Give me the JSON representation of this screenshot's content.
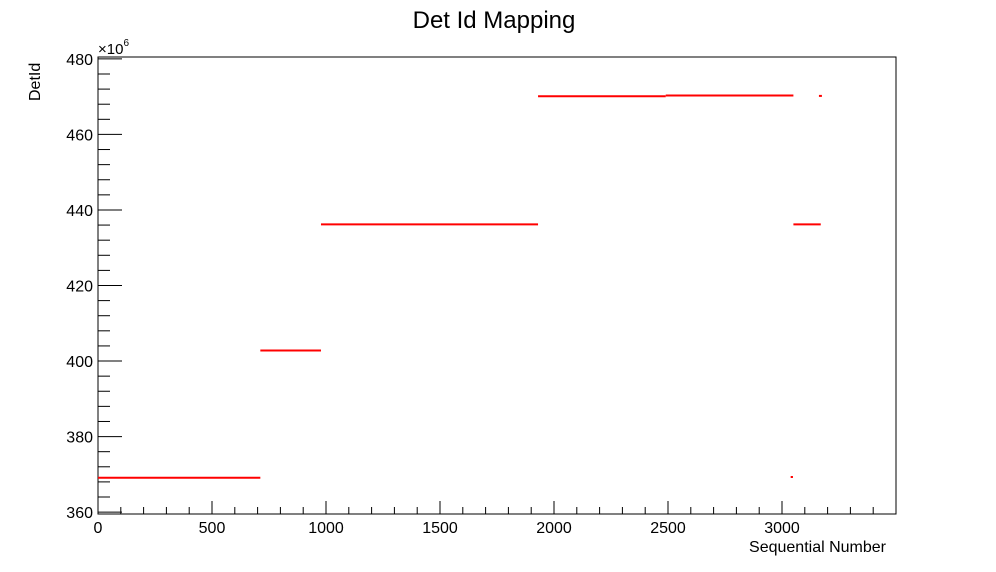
{
  "chart_data": {
    "type": "scatter",
    "title": "Det Id Mapping",
    "xlabel": "Sequential Number",
    "ylabel": "DetId",
    "y_multiplier_base": "×10",
    "y_multiplier_exp": "6",
    "xlim": [
      0,
      3500
    ],
    "ylim": [
      359.5,
      480.5
    ],
    "grid": false,
    "x_ticks": [
      0,
      500,
      1000,
      1500,
      2000,
      2500,
      3000
    ],
    "y_ticks": [
      360,
      380,
      400,
      420,
      440,
      460,
      480
    ],
    "series_color": "#ff0000",
    "segments": [
      {
        "x": [
          0,
          712
        ],
        "y": 369.1
      },
      {
        "x": [
          712,
          978
        ],
        "y": 402.8
      },
      {
        "x": [
          978,
          1930
        ],
        "y": 436.2
      },
      {
        "x": [
          1930,
          2490
        ],
        "y": 470.1
      },
      {
        "x": [
          2490,
          3050
        ],
        "y": 470.3
      },
      {
        "x": [
          3038,
          3048
        ],
        "y": 369.3
      },
      {
        "x": [
          3050,
          3170
        ],
        "y": 436.2
      },
      {
        "x": [
          3162,
          3175
        ],
        "y": 470.2
      }
    ]
  }
}
